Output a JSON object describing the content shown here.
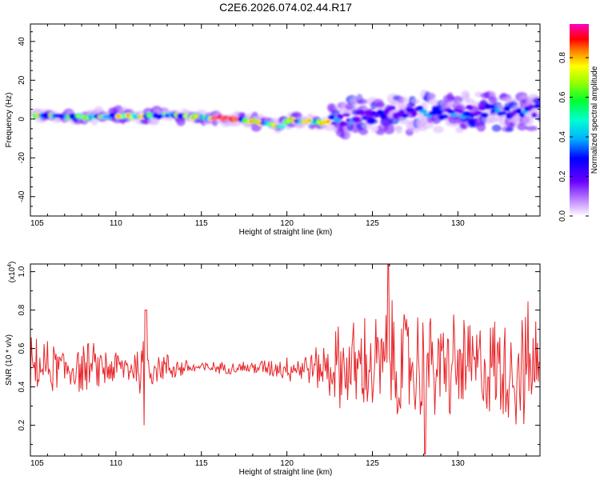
{
  "title": "C2E6.2026.074.02.44.R17",
  "chart_data": [
    {
      "type": "heatmap",
      "title": "C2E6.2026.074.02.44.R17",
      "xlabel": "Height of straight line (km)",
      "ylabel": "Frequency (Hz)",
      "xlim": [
        105,
        134.8
      ],
      "ylim": [
        -50,
        49
      ],
      "xticks": [
        "105",
        "110",
        "115",
        "120",
        "125",
        "130"
      ],
      "yticks": [
        "40",
        "20",
        "0",
        "-20",
        "-40"
      ],
      "colorbar": {
        "label": "Normalized spectral amplitude",
        "ticks": [
          "0.0",
          "0.2",
          "0.4",
          "0.6",
          "0.8"
        ],
        "range": [
          0,
          0.97
        ]
      },
      "ridge": {
        "x": [
          105.5,
          107,
          108.5,
          110,
          111.5,
          113,
          114.5,
          116,
          117,
          118,
          119,
          119.6,
          120.2,
          121,
          122,
          123,
          124,
          125,
          126,
          127,
          128,
          129,
          130,
          131,
          132,
          133,
          134.5
        ],
        "y": [
          2,
          1,
          1,
          2,
          1,
          2,
          1,
          0.5,
          0,
          -1,
          -3,
          -4,
          0,
          -1,
          -2,
          -1,
          2,
          1,
          3,
          2,
          4,
          2,
          3,
          5,
          4,
          3,
          4
        ]
      }
    },
    {
      "type": "line",
      "xlabel": "Height of straight line (km)",
      "ylabel": "SNR (10 * v/v)",
      "scale_label": "(x10^4)",
      "scale_base": "(x10",
      "scale_exp": "4",
      "scale_close": ")",
      "xlim": [
        105,
        134.8
      ],
      "ylim": [
        0.04,
        1.04
      ],
      "xticks": [
        "105",
        "110",
        "115",
        "120",
        "125",
        "130"
      ],
      "yticks": [
        "1.0",
        "0.8",
        "0.6",
        "0.4",
        "0.2"
      ],
      "series": [
        {
          "name": "SNR",
          "color": "#e8262a",
          "envelope_x": [
            105,
            106,
            107,
            108,
            109,
            110,
            111,
            111.7,
            112,
            113,
            114,
            115,
            116,
            117,
            118,
            119,
            120,
            121,
            122,
            123,
            124,
            125,
            126,
            127,
            128,
            129,
            130,
            131,
            132,
            133,
            134,
            134.8
          ],
          "envelope_amp": [
            0.18,
            0.16,
            0.15,
            0.16,
            0.14,
            0.12,
            0.1,
            0.3,
            0.12,
            0.09,
            0.06,
            0.04,
            0.035,
            0.04,
            0.045,
            0.06,
            0.08,
            0.1,
            0.14,
            0.26,
            0.3,
            0.34,
            0.4,
            0.38,
            0.36,
            0.33,
            0.34,
            0.3,
            0.32,
            0.36,
            0.38,
            0.35
          ],
          "center": 0.5
        }
      ]
    }
  ]
}
